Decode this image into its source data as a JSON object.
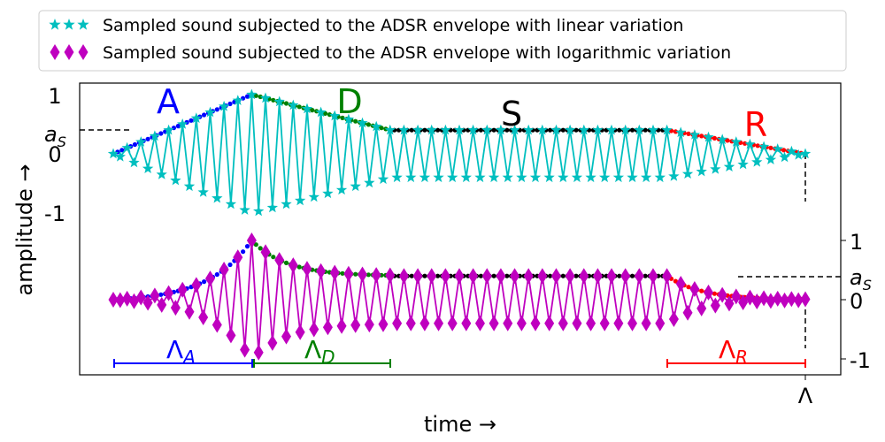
{
  "chart_data": {
    "type": "line",
    "xlabel": "time →",
    "ylabel": "amplitude →",
    "x_tick_end": "Λ",
    "top_axis": {
      "ticks": [
        "1",
        "a_S",
        "0",
        "-1"
      ],
      "tick_values": [
        1,
        0.4,
        0,
        -1
      ]
    },
    "bottom_axis": {
      "ticks": [
        "1",
        "a_S",
        "0",
        "-1"
      ],
      "tick_values": [
        1,
        0.4,
        0,
        -1
      ]
    },
    "sustain_level": 0.4,
    "phase_labels": [
      {
        "text": "A",
        "color": "#0000ff"
      },
      {
        "text": "D",
        "color": "#008000"
      },
      {
        "text": "S",
        "color": "#000000"
      },
      {
        "text": "R",
        "color": "#ff0000"
      }
    ],
    "duration_labels": [
      {
        "main": "Λ",
        "sub": "A",
        "color": "#0000ff",
        "from": 0,
        "to": 0.2
      },
      {
        "main": "Λ",
        "sub": "D",
        "color": "#008000",
        "from": 0.2,
        "to": 0.4
      },
      {
        "main": "Λ",
        "sub": "R",
        "color": "#ff0000",
        "from": 0.8,
        "to": 1.0
      }
    ],
    "envelope_breakpoints": {
      "t": [
        0,
        0.2,
        0.4,
        0.8,
        1.0
      ],
      "amplitude": [
        0,
        1,
        0.4,
        0.4,
        0
      ]
    },
    "legend_placement": "top-center, above plot",
    "series": [
      {
        "name": "Sampled sound subjected to the ADSR envelope with linear variation",
        "color": "#00bfbf",
        "marker": "star",
        "envelope": "linear",
        "panel": "top"
      },
      {
        "name": "Sampled sound subjected to the ADSR envelope with logarithmic variation",
        "color": "#bf00bf",
        "marker": "diamond",
        "envelope": "logarithmic",
        "panel": "bottom"
      }
    ]
  }
}
